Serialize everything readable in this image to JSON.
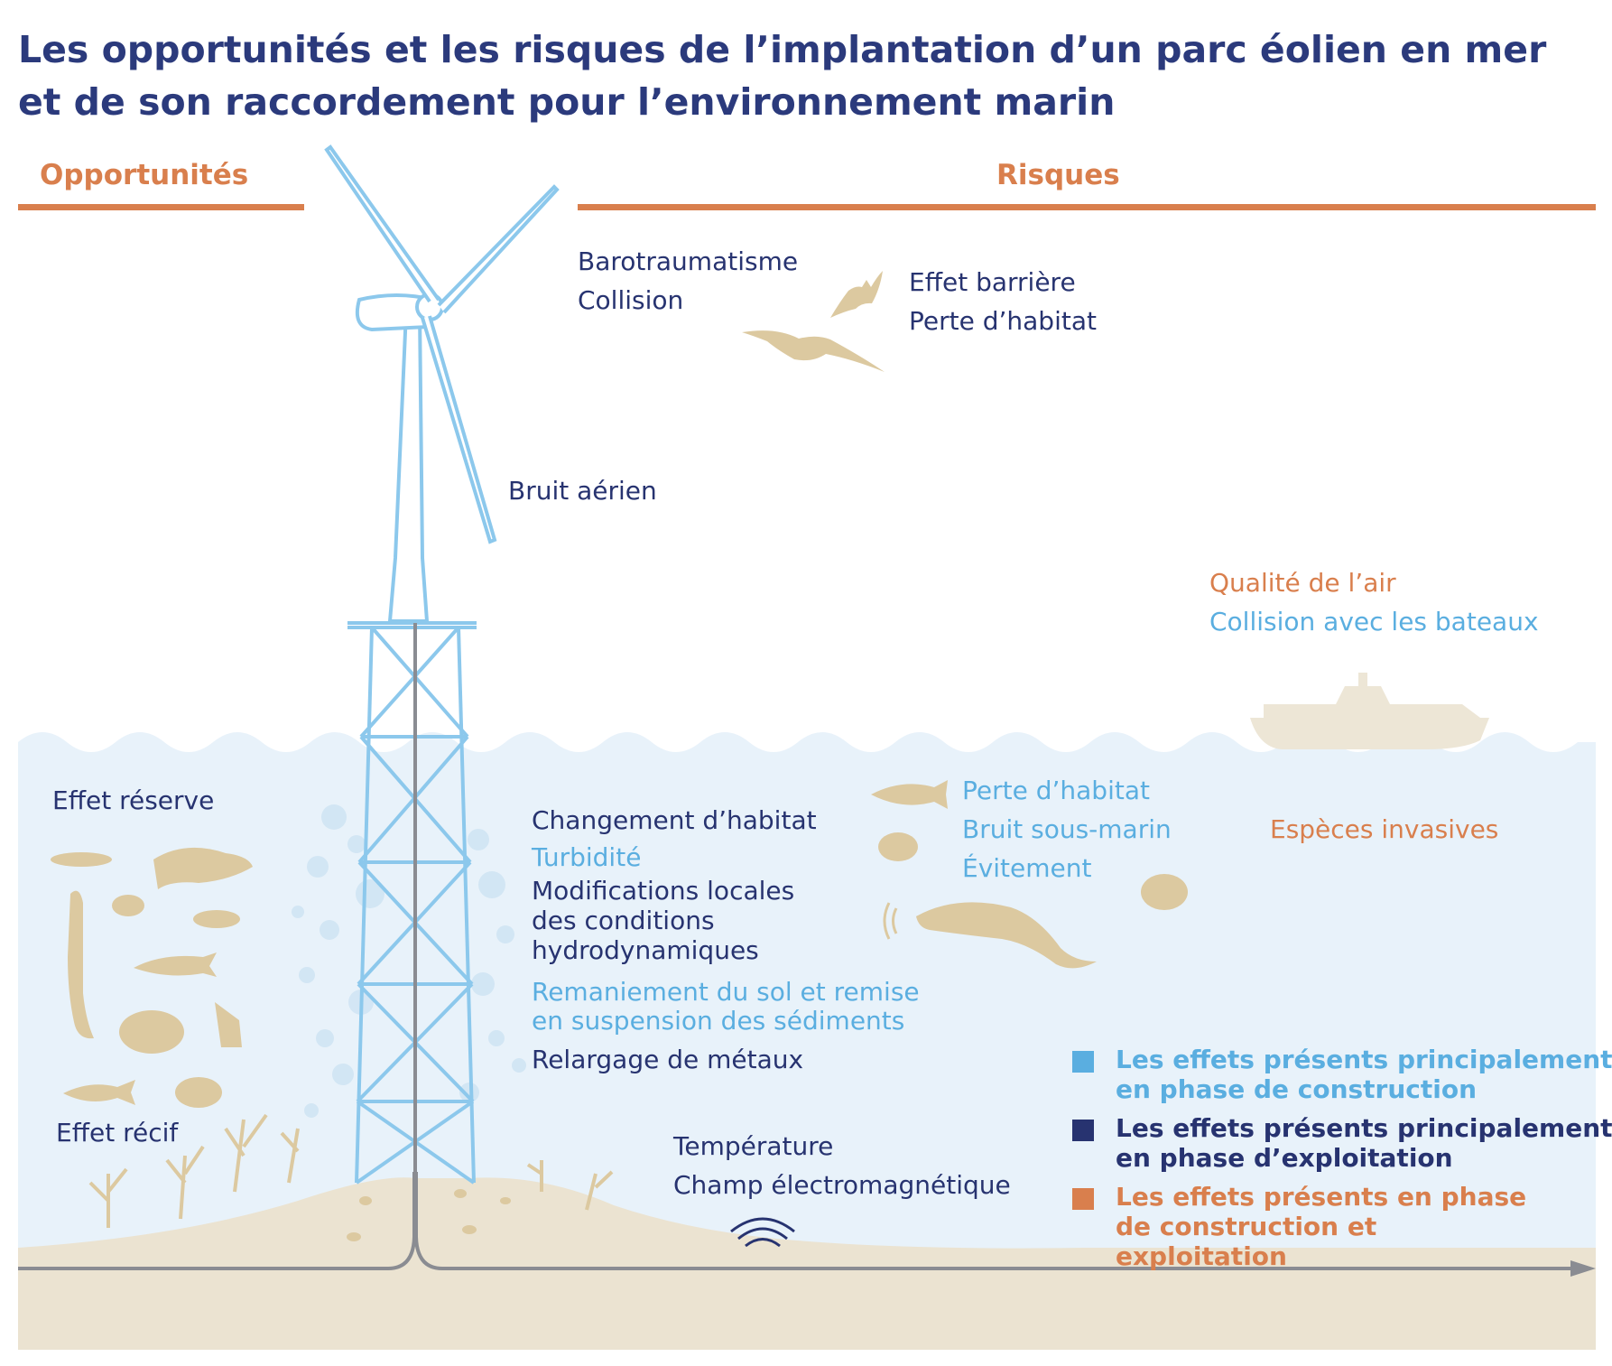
{
  "title": "Les opportunités et les risques de l’implantation d’un parc éolien en mer et de son raccordement pour l’environnement marin",
  "sections": {
    "opportunities": "Opportunités",
    "risks": "Risques"
  },
  "colors": {
    "construction": "#5aaee0",
    "exploitation": "#273370",
    "both": "#d97f4d",
    "sea": "#e8f2fa",
    "sand": "#ebe3d1",
    "silhouette": "#dcc9a0",
    "turbine": "#8cc8ec"
  },
  "labels": {
    "barotraumatisme": "Barotraumatisme",
    "collision": "Collision",
    "effet_barriere": "Effet barrière",
    "perte_habitat_air": "Perte d’habitat",
    "bruit_aerien": "Bruit aérien",
    "qualite_air": "Qualité de l’air",
    "collision_bateaux": "Collision avec les bateaux",
    "effet_reserve": "Effet réserve",
    "effet_recif": "Effet récif",
    "changement_habitat": "Changement d’habitat",
    "turbidite": "Turbidité",
    "modif_1": "Modifications locales",
    "modif_2": "des conditions",
    "modif_3": "hydrodynamiques",
    "remaniement_1": "Remaniement du sol et remise",
    "remaniement_2": "en suspension des sédiments",
    "relargage": "Relargage de métaux",
    "perte_habitat_mer": "Perte d’habitat",
    "bruit_sous_marin": "Bruit sous-marin",
    "evitement": "Évitement",
    "especes_invasives": "Espèces invasives",
    "temperature": "Température",
    "champ_em": "Champ électromagnétique"
  },
  "legend": [
    {
      "text": "Les effets présents principalement en phase de construction",
      "color": "#5aaee0"
    },
    {
      "text": "Les effets présents principalement en phase d’exploitation",
      "color": "#273370"
    },
    {
      "text": "Les effets présents en phase de construction et exploitation",
      "color": "#d97f4d"
    }
  ]
}
